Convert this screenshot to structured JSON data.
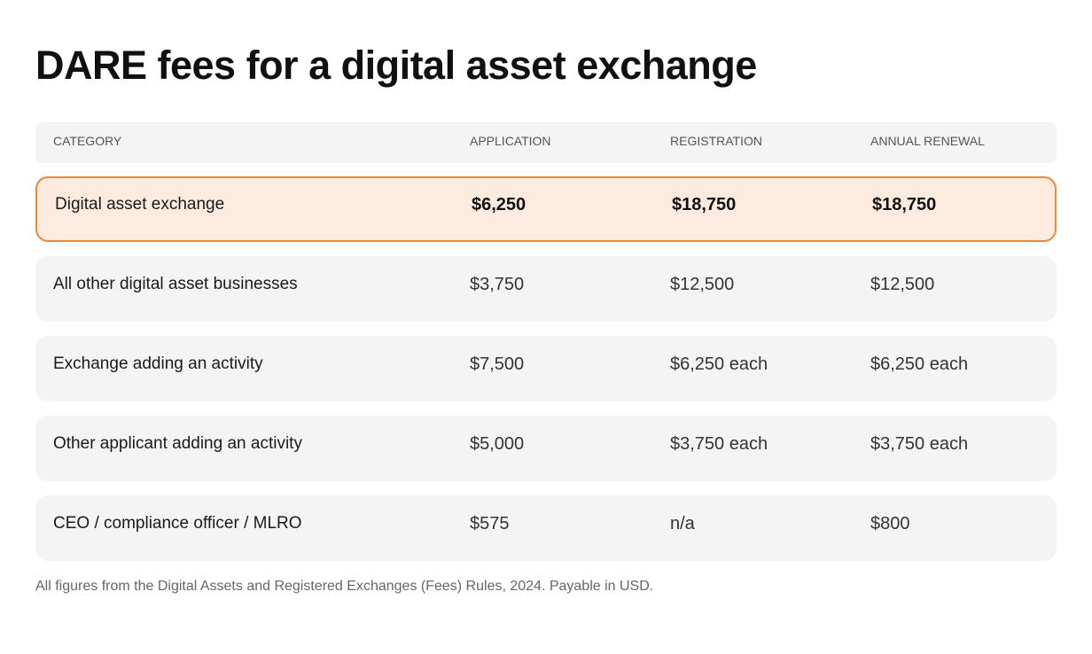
{
  "title": "DARE fees for a digital asset exchange",
  "columns": [
    "CATEGORY",
    "APPLICATION",
    "REGISTRATION",
    "ANNUAL RENEWAL"
  ],
  "rows": [
    {
      "category": "Digital asset exchange",
      "application": "$6,250",
      "registration": "$18,750",
      "renewal": "$18,750",
      "highlighted": true
    },
    {
      "category": "All other digital asset businesses",
      "application": "$3,750",
      "registration": "$12,500",
      "renewal": "$12,500"
    },
    {
      "category": "Exchange adding an activity",
      "application": "$7,500",
      "registration": "$6,250 each",
      "renewal": "$6,250 each"
    },
    {
      "category": "Other applicant adding an activity",
      "application": "$5,000",
      "registration": "$3,750 each",
      "renewal": "$3,750 each"
    },
    {
      "category": "CEO / compliance officer / MLRO",
      "application": "$575",
      "registration": "n/a",
      "renewal": "$800"
    }
  ],
  "footnote": "All figures from the Digital Assets and Registered Exchanges (Fees) Rules, 2024. Payable in USD.",
  "colors": {
    "highlight_border": "#f0883a",
    "highlight_fill": "#fdebe0",
    "row_fill": "#f4f4f4"
  }
}
